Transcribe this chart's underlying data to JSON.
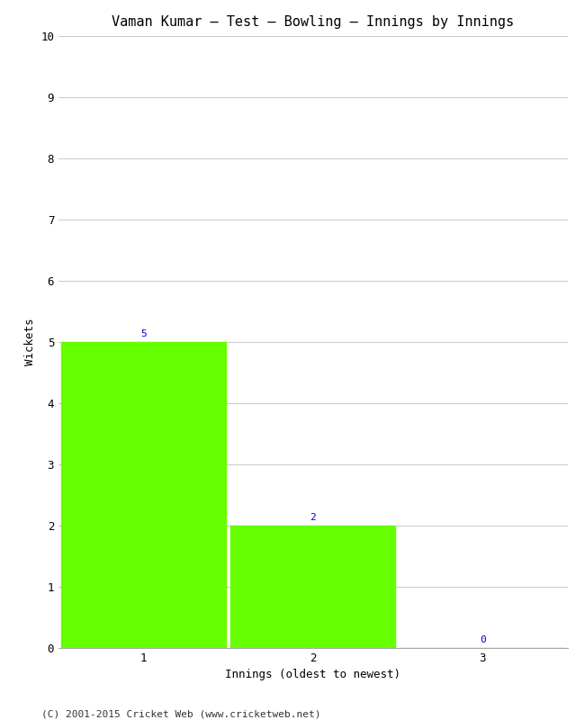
{
  "title": "Vaman Kumar – Test – Bowling – Innings by Innings",
  "xlabel": "Innings (oldest to newest)",
  "ylabel": "Wickets",
  "categories": [
    "1",
    "2",
    "3"
  ],
  "values": [
    5,
    2,
    0
  ],
  "bar_color": "#66ff00",
  "bar_edgecolor": "#66ff00",
  "ylim": [
    0,
    10
  ],
  "yticks": [
    0,
    1,
    2,
    3,
    4,
    5,
    6,
    7,
    8,
    9,
    10
  ],
  "annotation_color": "#0000cc",
  "annotation_fontsize": 8,
  "title_fontsize": 11,
  "label_fontsize": 9,
  "tick_fontsize": 9,
  "footer_text": "(C) 2001-2015 Cricket Web (www.cricketweb.net)",
  "footer_fontsize": 8,
  "background_color": "#ffffff",
  "grid_color": "#cccccc",
  "bar_width": 0.97,
  "xlim_left": 0.5,
  "xlim_right": 3.5
}
